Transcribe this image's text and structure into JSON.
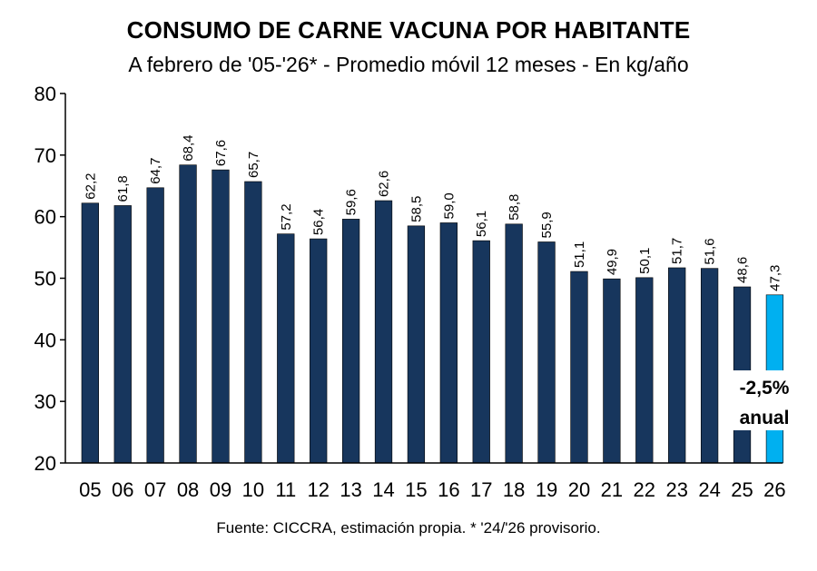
{
  "chart_data": {
    "type": "bar",
    "title": "CONSUMO DE CARNE VACUNA POR HABITANTE",
    "subtitle": "A febrero de '05-'26* - Promedio móvil 12 meses -  En kg/año",
    "source": "Fuente: CICCRA, estimación propia. * '24/'26 provisorio.",
    "categories": [
      "05",
      "06",
      "07",
      "08",
      "09",
      "10",
      "11",
      "12",
      "13",
      "14",
      "15",
      "16",
      "17",
      "18",
      "19",
      "20",
      "21",
      "22",
      "23",
      "24",
      "25",
      "26"
    ],
    "values": [
      62.2,
      61.8,
      64.7,
      68.4,
      67.6,
      65.7,
      57.2,
      56.4,
      59.6,
      62.6,
      58.5,
      59.0,
      56.1,
      58.8,
      55.9,
      51.1,
      49.9,
      50.1,
      51.7,
      51.6,
      48.6,
      47.3
    ],
    "value_labels": [
      "62,2",
      "61,8",
      "64,7",
      "68,4",
      "67,6",
      "65,7",
      "57,2",
      "56,4",
      "59,6",
      "62,6",
      "58,5",
      "59,0",
      "56,1",
      "58,8",
      "55,9",
      "51,1",
      "49,9",
      "50,1",
      "51,7",
      "51,6",
      "48,6",
      "47,3"
    ],
    "ylim": [
      20,
      80
    ],
    "yticks": [
      20,
      30,
      40,
      50,
      60,
      70,
      80
    ],
    "grid": false,
    "legend": "none",
    "colors": {
      "bar": "#17365d",
      "highlight": "#00b0f0"
    },
    "highlight_index": 21,
    "annotation": {
      "line1": "-2,5%",
      "line2": "anual"
    }
  }
}
